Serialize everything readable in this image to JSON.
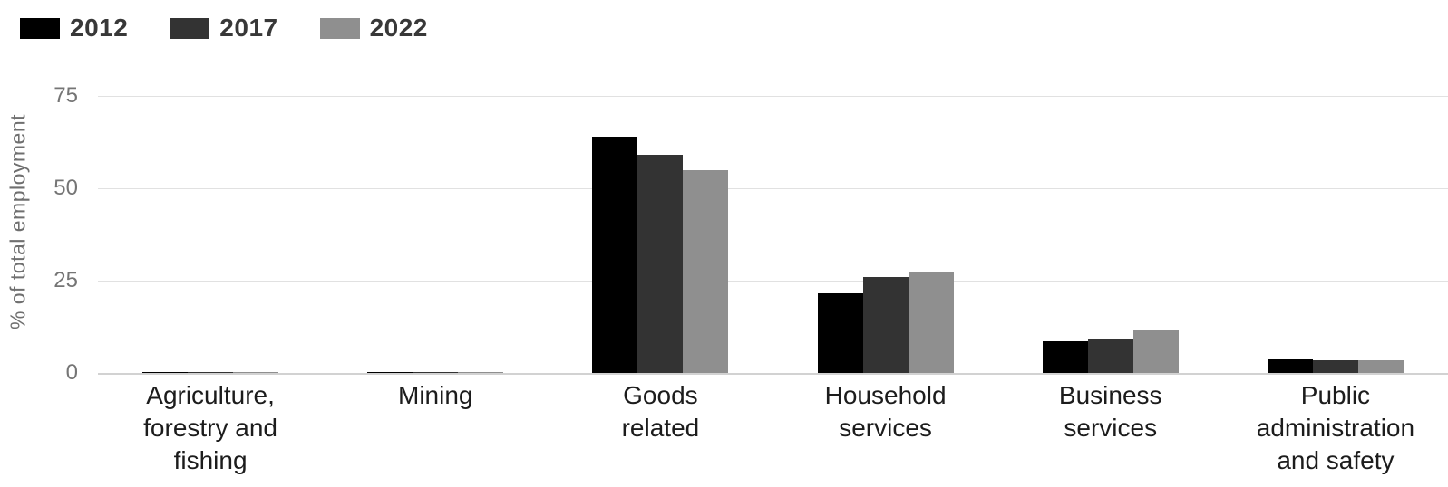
{
  "chart_data": {
    "type": "bar",
    "title": "",
    "ylabel": "% of total employment",
    "xlabel": "",
    "categories": [
      "Agriculture,\nforestry and\nfishing",
      "Mining",
      "Goods\nrelated",
      "Household\nservices",
      "Business\nservices",
      "Public\nadministration\nand safety"
    ],
    "series": [
      {
        "name": "2012",
        "color": "#000000",
        "values": [
          0.3,
          0.2,
          64,
          21.5,
          8.5,
          3.7
        ]
      },
      {
        "name": "2017",
        "color": "#333333",
        "values": [
          0.3,
          0.2,
          59,
          26,
          9,
          3.5
        ]
      },
      {
        "name": "2022",
        "color": "#8f8f8f",
        "values": [
          0.3,
          0.3,
          55,
          27.5,
          11.5,
          3.4
        ]
      }
    ],
    "yticks": [
      0,
      25,
      50,
      75
    ],
    "ylim": [
      0,
      83.8
    ],
    "grid": true,
    "legend_position": "top-left",
    "colors": {
      "gridline": "#e1e1e1",
      "axis_line": "#d2d2d2",
      "tick_text": "#757575",
      "axis_title_text": "#6f6f6f",
      "category_text": "#1c1c1c",
      "legend_text": "#383838",
      "background": "#ffffff"
    }
  }
}
